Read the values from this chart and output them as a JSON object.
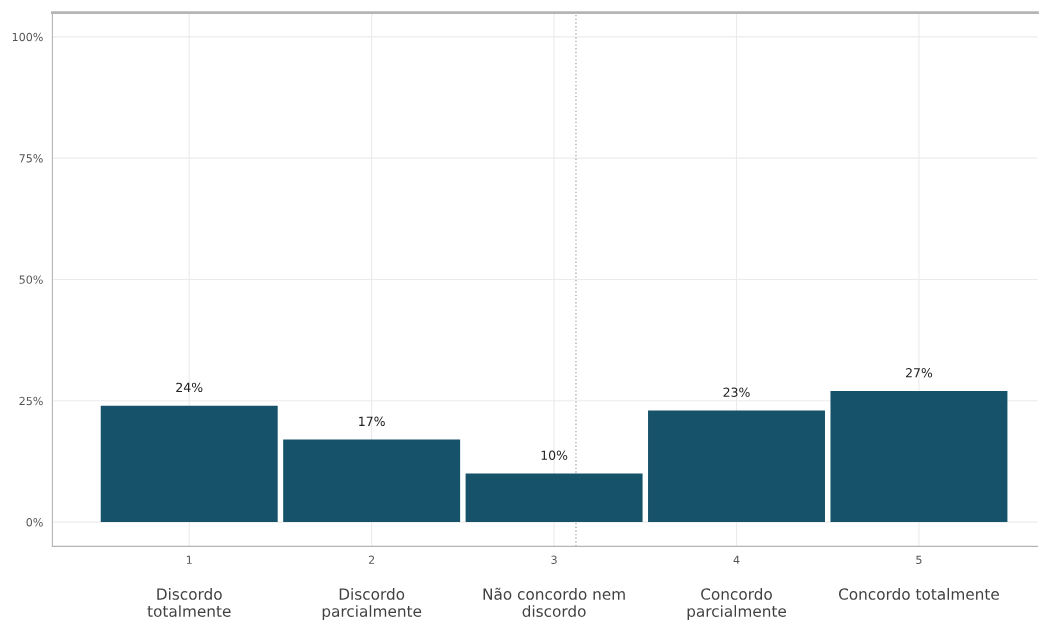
{
  "chart_data": {
    "type": "bar",
    "x": [
      1,
      2,
      3,
      4,
      5
    ],
    "xlim": [
      0.25,
      5.65
    ],
    "xticks": [
      1,
      2,
      3,
      4,
      5
    ],
    "values": [
      24,
      17,
      10,
      23,
      27
    ],
    "color": "#16536a",
    "data_labels": true,
    "value_labels": [
      "24%",
      "17%",
      "10%",
      "23%",
      "27%"
    ],
    "ylim": [
      -5,
      105
    ],
    "yticks": [
      {
        "value": 0,
        "label": "0%"
      },
      {
        "value": 25,
        "label": "25%"
      },
      {
        "value": 50,
        "label": "50%"
      },
      {
        "value": 75,
        "label": "75%"
      },
      {
        "value": 100,
        "label": "100%"
      }
    ],
    "grid": true,
    "ref_lines": [
      {
        "axis": "x",
        "value": 3.12,
        "color": "#b0b0b0",
        "line_style": "dotted"
      }
    ],
    "annotations": [
      "Discordo\ntotalmente",
      "Discordo\nparcialmente",
      "Não concordo nem\ndiscordo",
      "Concordo\nparcialmente",
      "Concordo totalmente"
    ]
  }
}
